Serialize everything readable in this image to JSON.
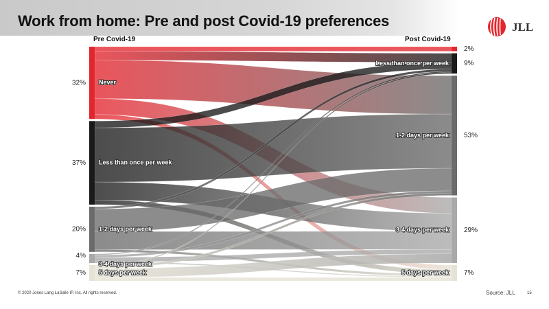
{
  "title": "Work from home: Pre and post Covid-19 preferences",
  "logo": {
    "text": "JLL",
    "icon": "jll-logo-icon"
  },
  "colors": {
    "never": "#e3262e",
    "less_than_once": "#1a1a1a",
    "one_two": "#6b6b6b",
    "three_four": "#a9a9a9",
    "five": "#e6e3d6"
  },
  "chart_data": {
    "type": "sankey",
    "title": "Work from home: Pre and post Covid-19 preferences",
    "left_label": "Pre Covid-19",
    "right_label": "Post Covid-19",
    "left_nodes": [
      {
        "key": "never",
        "label": "Never",
        "pct": "32%",
        "value": 32
      },
      {
        "key": "less_than_once",
        "label": "Less than once per week",
        "pct": "37%",
        "value": 37
      },
      {
        "key": "one_two",
        "label": "1-2 days per week",
        "pct": "20%",
        "value": 20
      },
      {
        "key": "three_four",
        "label": "3-4 days per week",
        "pct": "4%",
        "value": 4
      },
      {
        "key": "five",
        "label": "5 days per week",
        "pct": "7%",
        "value": 7
      }
    ],
    "right_nodes": [
      {
        "key": "never",
        "label": "",
        "pct": "2%",
        "value": 2
      },
      {
        "key": "less_than_once",
        "label": "Less than once per week",
        "pct": "9%",
        "value": 9
      },
      {
        "key": "one_two",
        "label": "1-2 days per week",
        "pct": "53%",
        "value": 53
      },
      {
        "key": "three_four",
        "label": "3-4 days per week",
        "pct": "29%",
        "value": 29
      },
      {
        "key": "five",
        "label": "5 days per week",
        "pct": "7%",
        "value": 7
      }
    ],
    "flows": [
      {
        "from": "never",
        "to": "never",
        "value": 2
      },
      {
        "from": "never",
        "to": "less_than_once",
        "value": 4
      },
      {
        "from": "never",
        "to": "one_two",
        "value": 17
      },
      {
        "from": "never",
        "to": "three_four",
        "value": 7
      },
      {
        "from": "never",
        "to": "five",
        "value": 2
      },
      {
        "from": "less_than_once",
        "to": "less_than_once",
        "value": 3
      },
      {
        "from": "less_than_once",
        "to": "one_two",
        "value": 24
      },
      {
        "from": "less_than_once",
        "to": "three_four",
        "value": 8
      },
      {
        "from": "less_than_once",
        "to": "five",
        "value": 2
      },
      {
        "from": "one_two",
        "to": "less_than_once",
        "value": 1
      },
      {
        "from": "one_two",
        "to": "one_two",
        "value": 10
      },
      {
        "from": "one_two",
        "to": "three_four",
        "value": 8
      },
      {
        "from": "one_two",
        "to": "five",
        "value": 1
      },
      {
        "from": "three_four",
        "to": "less_than_once",
        "value": 0.5
      },
      {
        "from": "three_four",
        "to": "one_two",
        "value": 1
      },
      {
        "from": "three_four",
        "to": "three_four",
        "value": 2
      },
      {
        "from": "three_four",
        "to": "five",
        "value": 0.5
      },
      {
        "from": "five",
        "to": "less_than_once",
        "value": 0.5
      },
      {
        "from": "five",
        "to": "one_two",
        "value": 1
      },
      {
        "from": "five",
        "to": "three_four",
        "value": 4
      },
      {
        "from": "five",
        "to": "five",
        "value": 1.5
      }
    ]
  },
  "footer": {
    "copyright": "© 2020 Jones Lang LaSalle IP, Inc. All rights reserved.",
    "source": "Source: JLL",
    "page": "15"
  }
}
